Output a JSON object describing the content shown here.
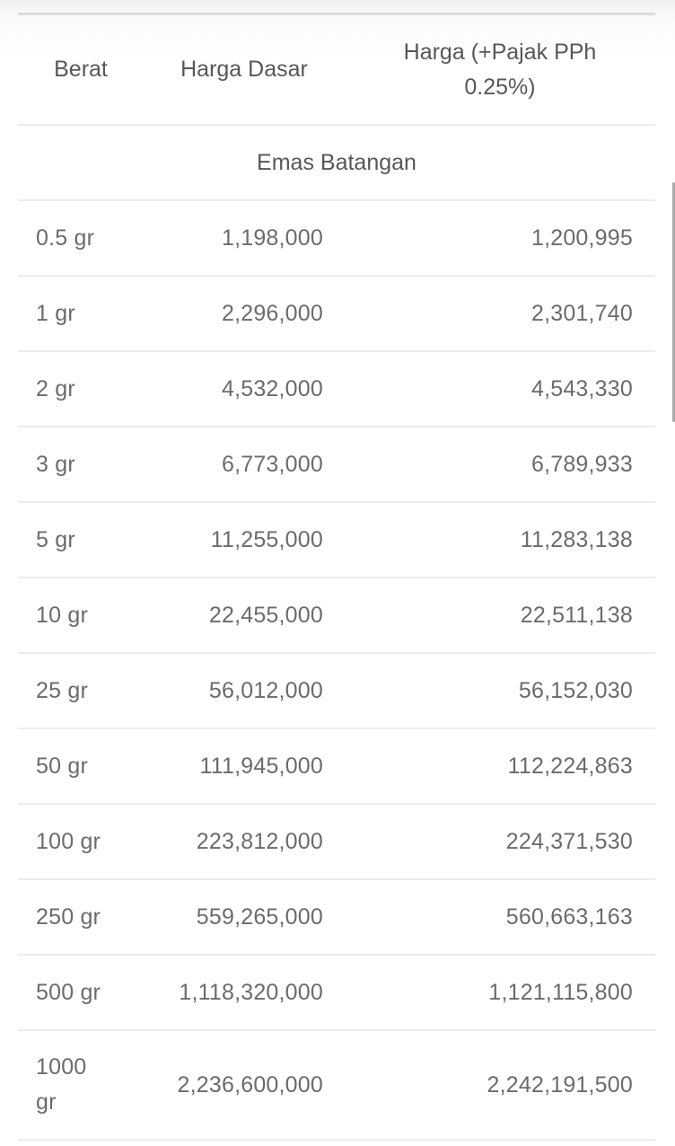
{
  "table": {
    "headers": {
      "weight": "Berat",
      "base_price": "Harga Dasar",
      "taxed_price": "Harga (+Pajak PPh 0.25%)"
    },
    "section_title": "Emas Batangan",
    "rows": [
      {
        "weight": "0.5 gr",
        "base_price": "1,198,000",
        "taxed_price": "1,200,995"
      },
      {
        "weight": "1 gr",
        "base_price": "2,296,000",
        "taxed_price": "2,301,740"
      },
      {
        "weight": "2 gr",
        "base_price": "4,532,000",
        "taxed_price": "4,543,330"
      },
      {
        "weight": "3 gr",
        "base_price": "6,773,000",
        "taxed_price": "6,789,933"
      },
      {
        "weight": "5 gr",
        "base_price": "11,255,000",
        "taxed_price": "11,283,138"
      },
      {
        "weight": "10 gr",
        "base_price": "22,455,000",
        "taxed_price": "22,511,138"
      },
      {
        "weight": "25 gr",
        "base_price": "56,012,000",
        "taxed_price": "56,152,030"
      },
      {
        "weight": "50 gr",
        "base_price": "111,945,000",
        "taxed_price": "112,224,863"
      },
      {
        "weight": "100 gr",
        "base_price": "223,812,000",
        "taxed_price": "224,371,530"
      },
      {
        "weight": "250 gr",
        "base_price": "559,265,000",
        "taxed_price": "560,663,163"
      },
      {
        "weight": "500 gr",
        "base_price": "1,118,320,000",
        "taxed_price": "1,121,115,800"
      },
      {
        "weight": "1000 gr",
        "base_price": "2,236,600,000",
        "taxed_price": "2,242,191,500"
      }
    ]
  },
  "colors": {
    "header_text": "#56575a",
    "body_text": "#6a6b6e",
    "divider": "#ececec",
    "top_border": "#dcdcdd",
    "scrollbar_thumb": "#a9a9a9"
  }
}
